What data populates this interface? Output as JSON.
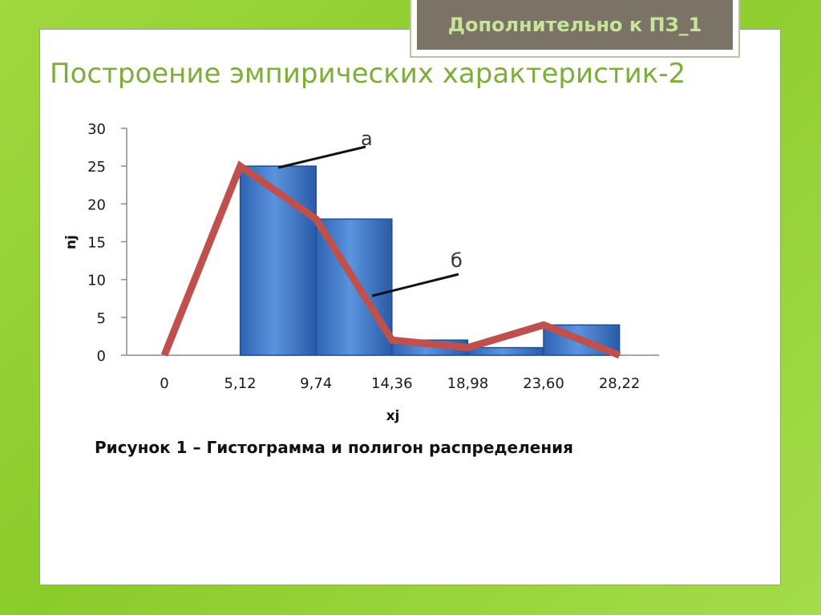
{
  "header": {
    "tag": "Дополнительно к ПЗ_1",
    "title": "Построение эмпирических характеристик-2"
  },
  "caption": "Рисунок 1 – Гистограмма и полигон распределения",
  "chart_data": {
    "type": "bar",
    "categories": [
      "0",
      "5,12",
      "9,74",
      "14,36",
      "18,98",
      "23,60",
      "28,22"
    ],
    "bars": [
      {
        "x0": "5,12",
        "x1": "9,74",
        "value": 25
      },
      {
        "x0": "9,74",
        "x1": "14,36",
        "value": 18
      },
      {
        "x0": "14,36",
        "x1": "18,98",
        "value": 2
      },
      {
        "x0": "18,98",
        "x1": "23,60",
        "value": 1
      },
      {
        "x0": "23,60",
        "x1": "28,22",
        "value": 4
      }
    ],
    "polygon": {
      "type": "line",
      "x": [
        "0",
        "5,12",
        "9,74",
        "14,36",
        "18,98",
        "23,60",
        "28,22"
      ],
      "values": [
        0,
        25,
        18,
        2,
        1,
        4,
        0
      ]
    },
    "xlabel": "xj",
    "ylabel": "nj",
    "yticks": [
      0,
      5,
      10,
      15,
      20,
      25,
      30
    ],
    "ylim": [
      0,
      30
    ],
    "annotations": [
      {
        "text": "а",
        "target": "bar"
      },
      {
        "text": "б",
        "target": "polygon"
      }
    ],
    "colors": {
      "bar": "#3a72c4",
      "bar_edge": "#1f4f93",
      "line": "#c0504d",
      "axis": "#8c8c8c"
    }
  }
}
